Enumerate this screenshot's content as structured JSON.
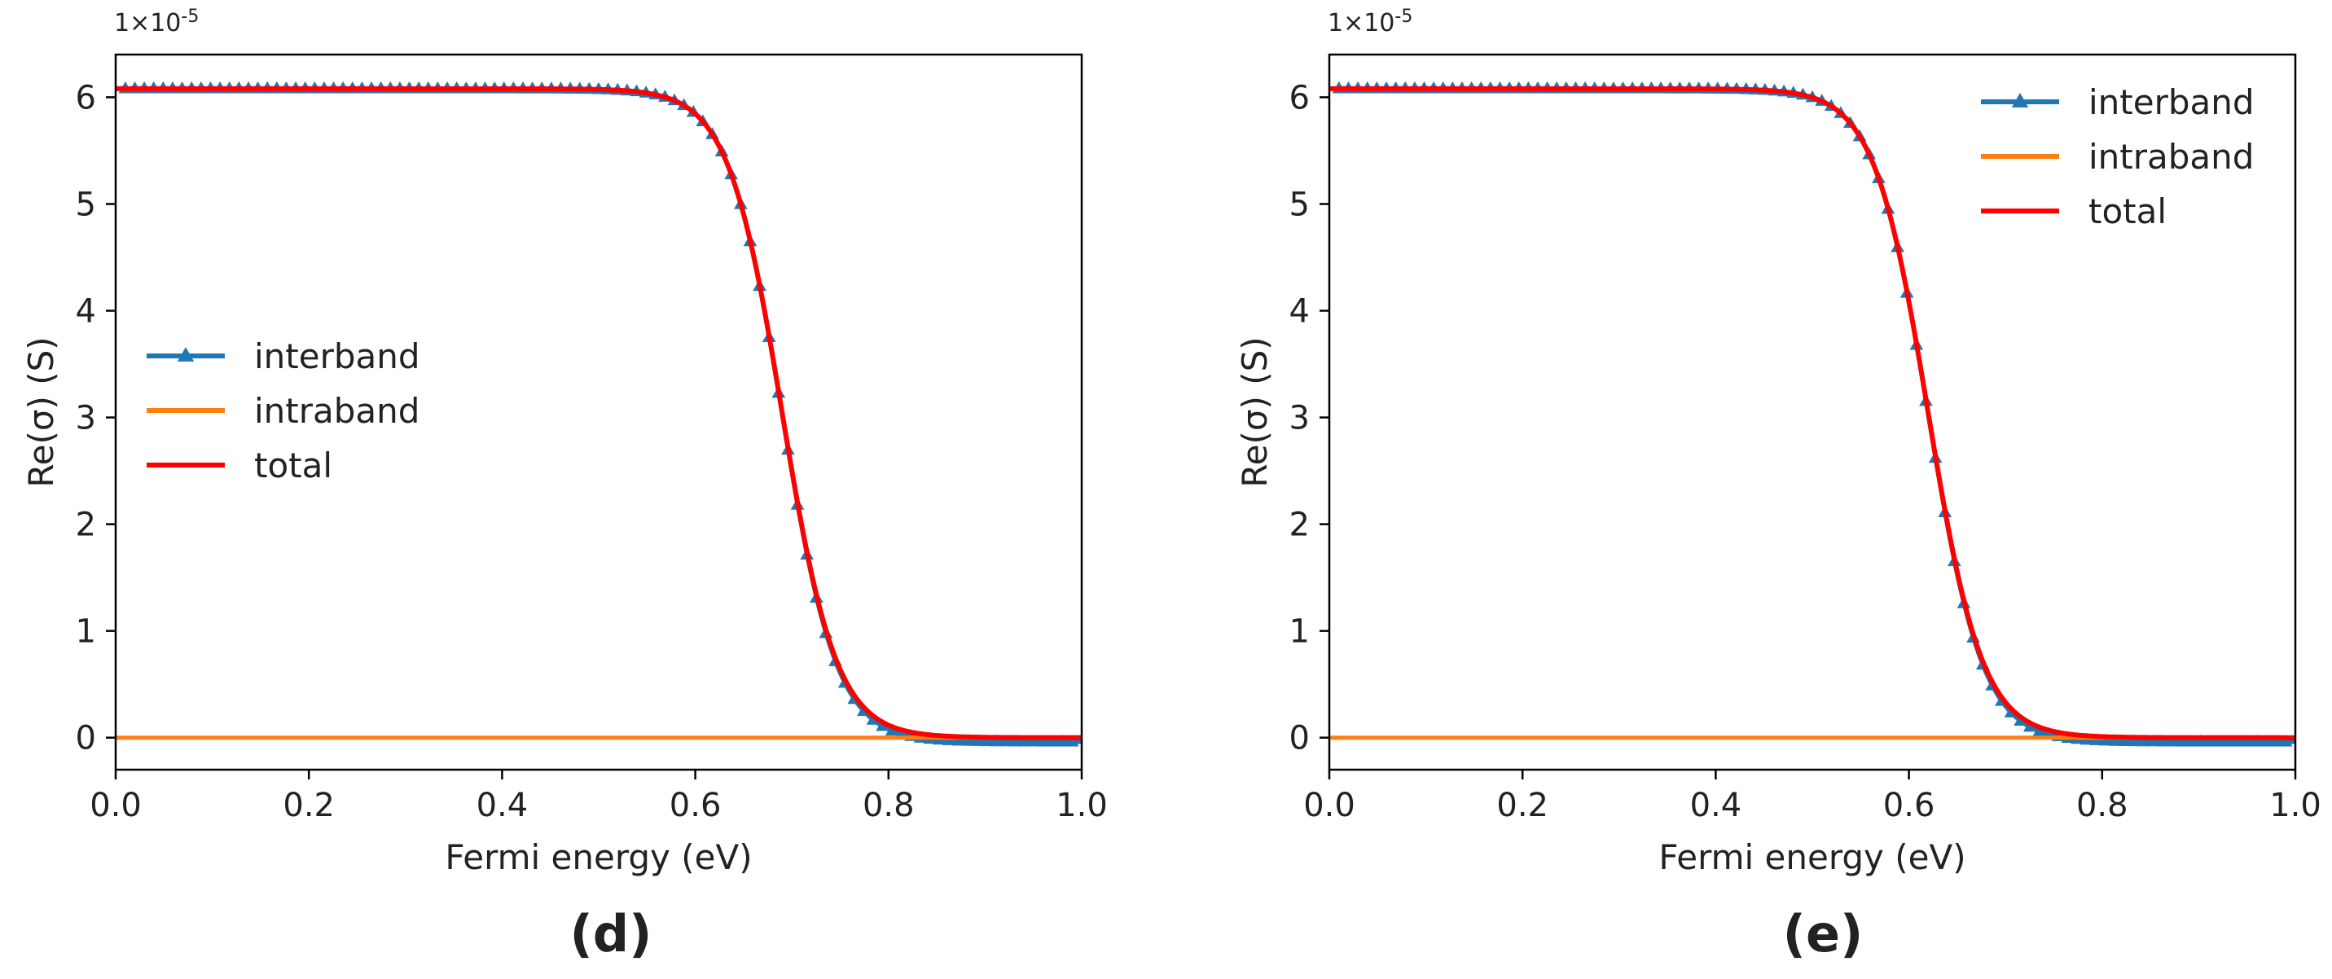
{
  "chart_data": [
    {
      "type": "line",
      "panel_label": "(d)",
      "xlabel": "Fermi energy (eV)",
      "ylabel": "Re(σ) (S)",
      "y_scale_label": "1×10-5",
      "y_scale_base": "1×10",
      "y_scale_exp": "-5",
      "xlim": [
        0.0,
        1.0
      ],
      "ylim": [
        -0.3,
        6.4
      ],
      "x_ticks": [
        0.0,
        0.2,
        0.4,
        0.6,
        0.8,
        1.0
      ],
      "x_tick_labels": [
        "0.0",
        "0.2",
        "0.4",
        "0.6",
        "0.8",
        "1.0"
      ],
      "y_ticks": [
        0,
        1,
        2,
        3,
        4,
        5,
        6
      ],
      "y_tick_labels": [
        "0",
        "1",
        "2",
        "3",
        "4",
        "5",
        "6"
      ],
      "legend_position": "center-left",
      "series": [
        {
          "name": "interband",
          "color": "#1f77b4",
          "marker": "triangle",
          "center": 0.69,
          "width": 0.028,
          "max": 6.08,
          "min": -0.04
        },
        {
          "name": "intraband",
          "color": "#ff7f0e",
          "marker": "none",
          "constant": 0.0
        },
        {
          "name": "total",
          "color": "#ff0000",
          "marker": "none",
          "center": 0.69,
          "width": 0.028,
          "max": 6.08,
          "min": 0.0
        }
      ]
    },
    {
      "type": "line",
      "panel_label": "(e)",
      "xlabel": "Fermi energy (eV)",
      "ylabel": "Re(σ) (S)",
      "y_scale_label": "1×10-5",
      "y_scale_base": "1×10",
      "y_scale_exp": "-5",
      "xlim": [
        0.0,
        1.0
      ],
      "ylim": [
        -0.3,
        6.4
      ],
      "x_ticks": [
        0.0,
        0.2,
        0.4,
        0.6,
        0.8,
        1.0
      ],
      "x_tick_labels": [
        "0.0",
        "0.2",
        "0.4",
        "0.6",
        "0.8",
        "1.0"
      ],
      "y_ticks": [
        0,
        1,
        2,
        3,
        4,
        5,
        6
      ],
      "y_tick_labels": [
        "0",
        "1",
        "2",
        "3",
        "4",
        "5",
        "6"
      ],
      "legend_position": "top-right",
      "series": [
        {
          "name": "interband",
          "color": "#1f77b4",
          "marker": "triangle",
          "center": 0.62,
          "width": 0.028,
          "max": 6.08,
          "min": -0.04
        },
        {
          "name": "intraband",
          "color": "#ff7f0e",
          "marker": "none",
          "constant": 0.0
        },
        {
          "name": "total",
          "color": "#ff0000",
          "marker": "none",
          "center": 0.62,
          "width": 0.028,
          "max": 6.08,
          "min": 0.0
        }
      ]
    }
  ]
}
